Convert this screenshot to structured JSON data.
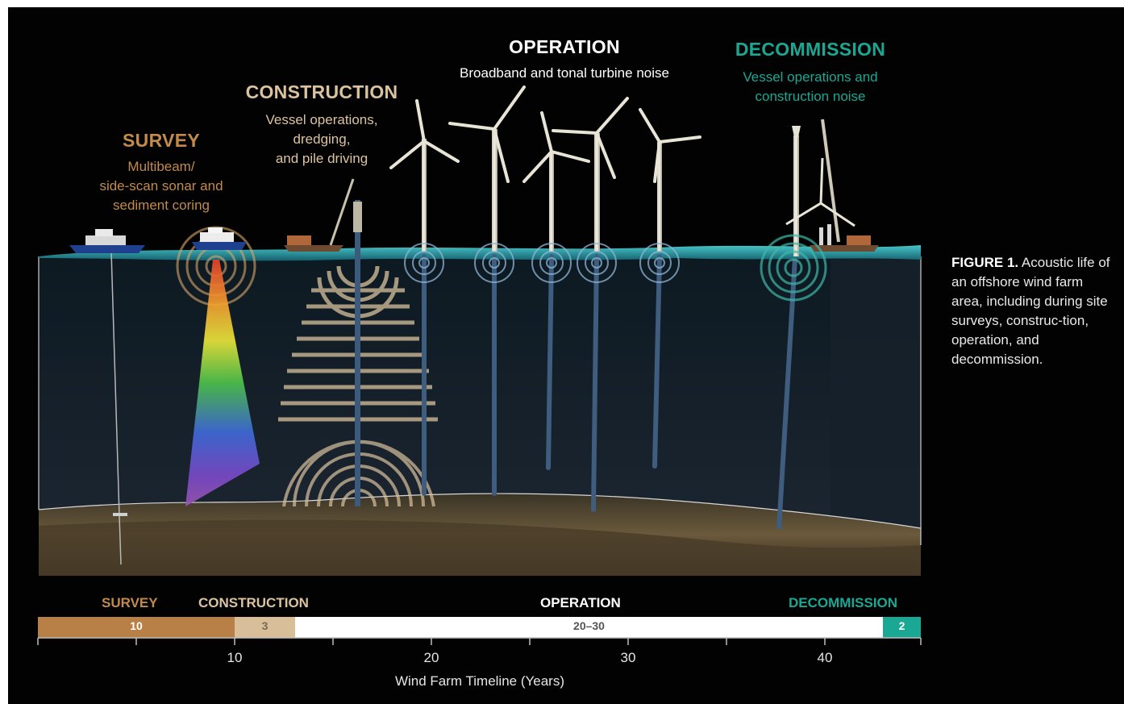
{
  "phases": {
    "survey": {
      "title": "SURVEY",
      "lines": [
        "Multibeam/",
        "side-scan sonar and",
        "sediment coring"
      ]
    },
    "construction": {
      "title": "CONSTRUCTION",
      "lines": [
        "Vessel operations,",
        "dredging,",
        "and pile driving"
      ]
    },
    "operation": {
      "title": "OPERATION",
      "lines": [
        "Broadband and tonal turbine noise"
      ]
    },
    "decommission": {
      "title": "DECOMMISSION",
      "lines": [
        "Vessel operations and",
        "construction noise"
      ]
    }
  },
  "caption": {
    "bold": "FIGURE 1.",
    "text": " Acoustic life of an offshore wind farm area, including during site surveys, construc-tion, operation, and decommission."
  },
  "timeline": {
    "headers": {
      "survey": "SURVEY",
      "construction": "CONSTRUCTION",
      "operation": "OPERATION",
      "decommission": "DECOMMISSION"
    },
    "segments": [
      {
        "name": "survey",
        "label": "10",
        "duration_years": 10,
        "color": "#b88046",
        "text_color": "#ffffff"
      },
      {
        "name": "construction",
        "label": "3",
        "duration_years": 3,
        "color": "#d8be99",
        "text_color": "#7a6a55"
      },
      {
        "name": "operation",
        "label": "20–30",
        "duration_years": "20–30",
        "color": "#ffffff",
        "text_color": "#555555"
      },
      {
        "name": "decommission",
        "label": "2",
        "duration_years": 2,
        "color": "#1aa894",
        "text_color": "#ffffff"
      }
    ],
    "tick_labels": [
      "10",
      "20",
      "30",
      "40"
    ],
    "axis_title": "Wind Farm Timeline (Years)"
  },
  "colors": {
    "background": "#020202",
    "survey": "#c28a4b",
    "construction": "#dcc39f",
    "operation": "#ffffff",
    "decommission": "#1aa894",
    "water_surface": "#2aa6b0",
    "seabed": "#5b4a32"
  }
}
